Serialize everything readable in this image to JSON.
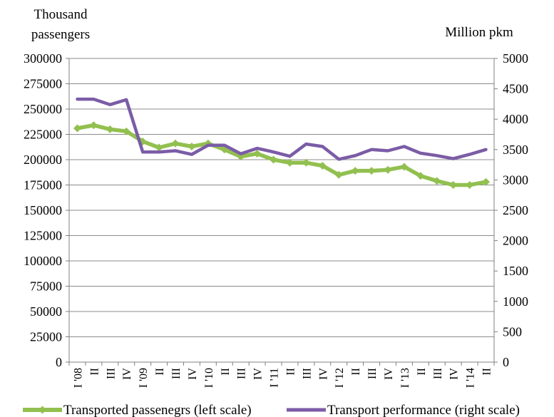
{
  "chart_data": {
    "type": "line",
    "title": "",
    "left_axis_label_lines": [
      "Thousand",
      "passengers"
    ],
    "right_axis_label": "Million pkm",
    "categories": [
      "I '08",
      "II",
      "III",
      "IV",
      "I '09",
      "II",
      "III",
      "IV",
      "I '10",
      "II",
      "III",
      "IV",
      "I '11",
      "II",
      "III",
      "IV",
      "I '12",
      "II",
      "III",
      "IV",
      "I '13",
      "II",
      "III",
      "IV",
      "I '14",
      "II"
    ],
    "left_axis": {
      "min": 0,
      "max": 300000,
      "step": 25000
    },
    "right_axis": {
      "min": 0,
      "max": 5000,
      "step": 500
    },
    "left_ticks": [
      "0",
      "25000",
      "50000",
      "75000",
      "100000",
      "125000",
      "150000",
      "175000",
      "200000",
      "225000",
      "250000",
      "275000",
      "300000"
    ],
    "right_ticks": [
      "0",
      "500",
      "1000",
      "1500",
      "2000",
      "2500",
      "3000",
      "3500",
      "4000",
      "4500",
      "5000"
    ],
    "grid": "horizontal",
    "legend_position": "bottom",
    "series": [
      {
        "name": "Transported passenegrs (left scale)",
        "axis": "left",
        "color": "#92c050",
        "marker": "diamond",
        "values": [
          231000,
          234000,
          230000,
          228000,
          218000,
          212000,
          216000,
          213000,
          216000,
          210000,
          203000,
          206000,
          200000,
          197000,
          197000,
          194000,
          185000,
          189000,
          189000,
          190000,
          193000,
          184000,
          179000,
          175000,
          175000,
          178000
        ]
      },
      {
        "name": "Transport performance (right scale)",
        "axis": "right",
        "color": "#7b5ca6",
        "marker": "none",
        "values": [
          4330,
          4330,
          4240,
          4320,
          3460,
          3460,
          3480,
          3420,
          3570,
          3570,
          3430,
          3520,
          3460,
          3390,
          3590,
          3550,
          3340,
          3400,
          3500,
          3480,
          3550,
          3440,
          3400,
          3350,
          3420,
          3500
        ]
      }
    ]
  }
}
